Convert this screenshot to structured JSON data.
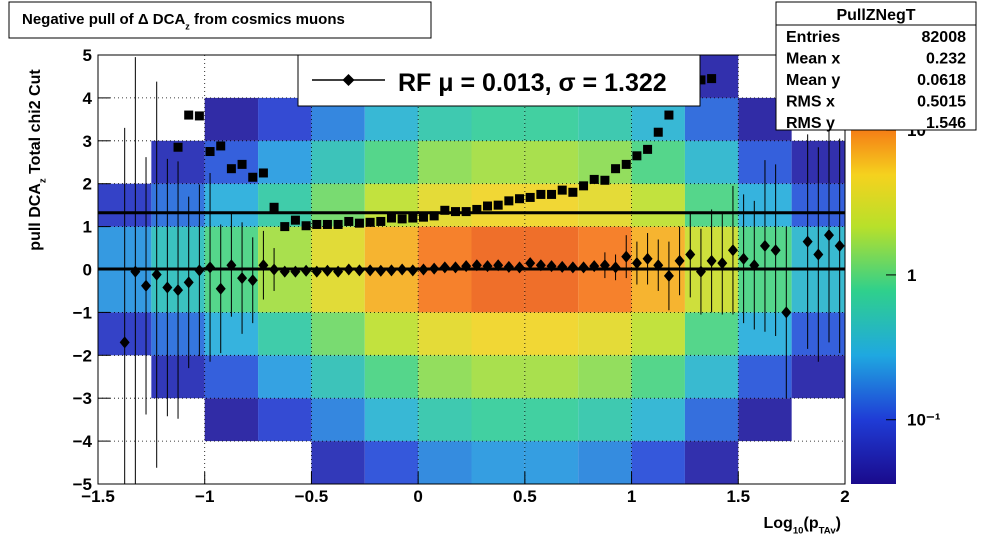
{
  "chart_data": {
    "type": "profile2d",
    "title": [
      "Negative pull of Δ DCA",
      "z",
      " from cosmics muons"
    ],
    "xlabel": [
      "Log",
      "10",
      "(p",
      "TAv",
      ")"
    ],
    "ylabel": [
      "pull DCA",
      "z",
      "   Total chi2 Cut"
    ],
    "xlim": [
      -1.5,
      2
    ],
    "ylim": [
      -5,
      5
    ],
    "xticks": [
      {
        "value": -1.5,
        "label": "−1.5"
      },
      {
        "value": -1,
        "label": "−1"
      },
      {
        "value": -0.5,
        "label": "−0.5"
      },
      0,
      0.5,
      1,
      1.5,
      2
    ],
    "yticks": [
      {
        "value": -5,
        "label": "−5"
      },
      {
        "value": -4,
        "label": "−4"
      },
      {
        "value": -3,
        "label": "−3"
      },
      {
        "value": -2,
        "label": "−2"
      },
      {
        "value": -1,
        "label": "−1"
      },
      0,
      1,
      2,
      3,
      4,
      5
    ],
    "grid": true,
    "zlim": [
      0.036,
      33
    ],
    "log_z": true,
    "zticks": [
      {
        "value": 0.1,
        "label": "10⁻¹"
      },
      1,
      10
    ],
    "heatmap": {
      "x_edges": [
        -1.5,
        -1.25,
        -1,
        -0.75,
        -0.5,
        -0.25,
        0,
        0.25,
        0.5,
        0.75,
        1,
        1.25,
        1.5,
        1.75,
        2
      ],
      "y_edges": [
        -5,
        -4,
        -3,
        -2,
        -1,
        0,
        1,
        2,
        3,
        4,
        5
      ],
      "values": [
        [
          0.004,
          0.008,
          0.015,
          0.03,
          0.06,
          0.11,
          0.19,
          0.23,
          0.23,
          0.19,
          0.11,
          0.05,
          0.015,
          0.006
        ],
        [
          0.011,
          0.023,
          0.045,
          0.09,
          0.18,
          0.34,
          0.56,
          0.68,
          0.68,
          0.56,
          0.34,
          0.14,
          0.045,
          0.018
        ],
        [
          0.03,
          0.06,
          0.12,
          0.24,
          0.48,
          0.9,
          1.5,
          1.8,
          1.8,
          1.5,
          0.9,
          0.36,
          0.12,
          0.05
        ],
        [
          0.075,
          0.15,
          0.3,
          0.6,
          1.2,
          2.25,
          3.75,
          4.5,
          4.5,
          3.75,
          2.25,
          0.9,
          0.3,
          0.12
        ],
        [
          0.22,
          0.45,
          0.9,
          1.8,
          3.6,
          6.75,
          11,
          13.5,
          13.5,
          11,
          6.75,
          2.7,
          0.9,
          0.36
        ],
        [
          0.22,
          0.45,
          0.9,
          1.8,
          3.6,
          6.75,
          11,
          13.5,
          13.5,
          11,
          6.75,
          2.7,
          0.9,
          0.36
        ],
        [
          0.075,
          0.15,
          0.3,
          0.6,
          1.2,
          2.25,
          3.75,
          4.5,
          4.5,
          3.75,
          2.25,
          0.9,
          0.3,
          0.12
        ],
        [
          0.03,
          0.06,
          0.12,
          0.24,
          0.48,
          0.9,
          1.5,
          1.8,
          1.8,
          1.5,
          0.9,
          0.36,
          0.12,
          0.05
        ],
        [
          0.011,
          0.023,
          0.045,
          0.09,
          0.18,
          0.34,
          0.56,
          0.68,
          0.68,
          0.56,
          0.34,
          0.14,
          0.045,
          0.018
        ],
        [
          0.004,
          0.008,
          0.015,
          0.03,
          0.06,
          0.11,
          0.19,
          0.23,
          0.23,
          0.19,
          0.11,
          0.05,
          0.015,
          0.006
        ]
      ]
    },
    "x": [
      -1.375,
      -1.325,
      -1.275,
      -1.225,
      -1.175,
      -1.125,
      -1.075,
      -1.025,
      -0.975,
      -0.925,
      -0.875,
      -0.825,
      -0.775,
      -0.725,
      -0.675,
      -0.625,
      -0.575,
      -0.525,
      -0.475,
      -0.425,
      -0.375,
      -0.325,
      -0.275,
      -0.225,
      -0.175,
      -0.125,
      -0.075,
      -0.025,
      0.025,
      0.075,
      0.125,
      0.175,
      0.225,
      0.275,
      0.325,
      0.375,
      0.425,
      0.475,
      0.525,
      0.575,
      0.625,
      0.675,
      0.725,
      0.775,
      0.825,
      0.875,
      0.925,
      0.975,
      1.025,
      1.075,
      1.125,
      1.175,
      1.225,
      1.275,
      1.325,
      1.375,
      1.425,
      1.475,
      1.525,
      1.575,
      1.625,
      1.675,
      1.725,
      1.775,
      1.825,
      1.875,
      1.925,
      1.975
    ],
    "series": [
      {
        "name": "mean",
        "marker": "diamond",
        "color": "#000000",
        "values": [
          -1.7,
          -0.05,
          -0.38,
          -0.12,
          -0.42,
          -0.48,
          -0.3,
          -0.02,
          0.05,
          -0.45,
          0.1,
          -0.2,
          -0.25,
          0.1,
          0.0,
          -0.05,
          -0.05,
          -0.03,
          -0.05,
          -0.03,
          -0.05,
          0.0,
          -0.02,
          -0.02,
          -0.03,
          -0.02,
          0.0,
          -0.02,
          0.0,
          0.02,
          0.05,
          0.05,
          0.08,
          0.1,
          0.08,
          0.1,
          0.06,
          0.05,
          0.15,
          0.1,
          0.08,
          0.06,
          0.05,
          0.05,
          0.08,
          0.1,
          0.05,
          0.3,
          0.15,
          0.25,
          0.1,
          -0.15,
          0.2,
          0.35,
          -0.05,
          0.2,
          0.15,
          0.45,
          0.25,
          0.1,
          0.55,
          0.45,
          -1.0,
          null,
          0.65,
          0.35,
          0.8,
          0.55
        ],
        "errors": [
          5,
          5,
          3,
          4.5,
          3,
          3,
          2,
          2,
          2.2,
          1.5,
          1.2,
          1.3,
          1,
          0.8,
          0.5,
          0.1,
          0.1,
          0.1,
          0.1,
          0.1,
          0.1,
          0.1,
          0.1,
          0.1,
          0.1,
          0.1,
          0.1,
          0.1,
          0.1,
          0.1,
          0.1,
          0.1,
          0.1,
          0.1,
          0.1,
          0.1,
          0.1,
          0.1,
          0.1,
          0.1,
          0.1,
          0.1,
          0.1,
          0.1,
          0.1,
          0.3,
          0.3,
          0.5,
          0.5,
          0.6,
          0.6,
          0.8,
          0.8,
          1,
          1,
          1.2,
          1.2,
          1.5,
          1.5,
          1.5,
          2,
          2,
          2,
          null,
          2.5,
          2.5,
          2.5,
          2.5
        ]
      },
      {
        "name": "sigma",
        "marker": "square",
        "color": "#000000",
        "values": [
          null,
          null,
          null,
          null,
          null,
          2.85,
          3.6,
          3.58,
          2.75,
          2.88,
          2.35,
          2.45,
          2.15,
          2.25,
          1.45,
          1.0,
          1.15,
          1.02,
          1.05,
          1.05,
          1.05,
          1.12,
          1.08,
          1.1,
          1.12,
          1.2,
          1.18,
          1.2,
          1.22,
          1.25,
          1.38,
          1.35,
          1.35,
          1.4,
          1.48,
          1.5,
          1.6,
          1.65,
          1.68,
          1.75,
          1.75,
          1.85,
          1.8,
          1.95,
          2.1,
          2.08,
          2.35,
          2.45,
          2.65,
          2.8,
          3.2,
          3.6,
          null,
          null,
          4.42,
          4.45,
          null,
          null,
          null,
          null,
          null,
          null,
          null,
          null,
          null,
          null,
          null,
          null
        ]
      }
    ],
    "fit": {
      "label": "RF μ =  0.013, σ =   1.322",
      "mean": 0.013,
      "sigma": 1.322
    },
    "stats": {
      "name": "PullZNegT",
      "rows": [
        {
          "label": "Entries",
          "value": 82008
        },
        {
          "label": "Mean x",
          "value": 0.232
        },
        {
          "label": "Mean y",
          "value": 0.0618
        },
        {
          "label": "RMS x",
          "value": 0.5015
        },
        {
          "label": "RMS y",
          "value": 1.546
        }
      ]
    }
  }
}
